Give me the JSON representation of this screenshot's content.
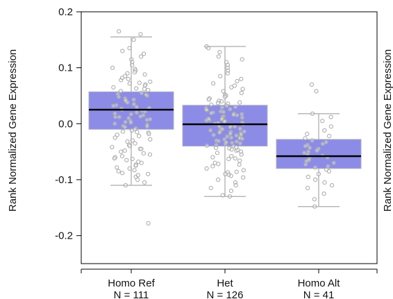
{
  "chart_data": {
    "type": "box",
    "ylabel": "Rank Normalized Gene Expression",
    "ylabel_right": "Rank Normalized Gene Expression",
    "ylim": [
      -0.25,
      0.2
    ],
    "yticks": [
      -0.2,
      -0.1,
      0.0,
      0.1,
      0.2
    ],
    "ytick_labels": [
      "-0.2",
      "-0.1",
      "0.0",
      "0.1",
      "0.2"
    ],
    "grid": false,
    "colors": {
      "box_fill": "#8c8ce6",
      "box_stroke": "#b0b0c8",
      "whisker": "#b8b8b8",
      "median": "#000000",
      "point_stroke": "#a8a8a8"
    },
    "categories": [
      {
        "label": "Homo Ref",
        "n_label": "N = 111",
        "q1": -0.01,
        "median": 0.025,
        "q3": 0.057,
        "whisker_low": -0.11,
        "whisker_high": 0.155,
        "points": [
          0.165,
          0.16,
          0.15,
          0.135,
          0.13,
          0.125,
          0.12,
          0.115,
          0.11,
          0.105,
          0.1,
          0.098,
          0.095,
          0.09,
          0.088,
          0.085,
          0.08,
          0.078,
          0.075,
          0.073,
          0.07,
          0.068,
          0.065,
          0.063,
          0.06,
          0.058,
          0.055,
          0.053,
          0.05,
          0.048,
          0.045,
          0.043,
          0.04,
          0.038,
          0.035,
          0.033,
          0.03,
          0.028,
          0.027,
          0.025,
          0.023,
          0.022,
          0.02,
          0.018,
          0.017,
          0.015,
          0.013,
          0.012,
          0.01,
          0.008,
          0.007,
          0.005,
          0.003,
          0.002,
          0.0,
          -0.002,
          -0.004,
          -0.006,
          -0.008,
          -0.01,
          -0.012,
          -0.014,
          -0.016,
          -0.018,
          -0.02,
          -0.022,
          -0.025,
          -0.028,
          -0.03,
          -0.032,
          -0.035,
          -0.038,
          -0.04,
          -0.042,
          -0.045,
          -0.048,
          -0.05,
          -0.053,
          -0.055,
          -0.058,
          -0.06,
          -0.063,
          -0.065,
          -0.068,
          -0.07,
          -0.073,
          -0.075,
          -0.078,
          -0.08,
          -0.083,
          -0.085,
          -0.088,
          -0.09,
          -0.095,
          -0.1,
          -0.105,
          -0.11,
          0.062,
          0.072,
          0.082,
          0.092,
          0.032,
          0.042,
          0.052,
          0.012,
          -0.005,
          -0.015,
          -0.045,
          -0.062,
          -0.092,
          -0.178
        ]
      },
      {
        "label": "Het",
        "n_label": "N = 126",
        "q1": -0.04,
        "median": -0.001,
        "q3": 0.033,
        "whisker_low": -0.13,
        "whisker_high": 0.138,
        "points": [
          0.138,
          0.135,
          0.128,
          0.12,
          0.115,
          0.11,
          0.105,
          0.1,
          0.095,
          0.09,
          0.085,
          0.08,
          0.076,
          0.072,
          0.068,
          0.065,
          0.062,
          0.058,
          0.055,
          0.052,
          0.05,
          0.048,
          0.045,
          0.043,
          0.04,
          0.038,
          0.036,
          0.034,
          0.032,
          0.03,
          0.028,
          0.026,
          0.024,
          0.022,
          0.02,
          0.018,
          0.016,
          0.015,
          0.013,
          0.012,
          0.01,
          0.008,
          0.007,
          0.005,
          0.004,
          0.002,
          0.0,
          -0.001,
          -0.003,
          -0.005,
          -0.006,
          -0.008,
          -0.01,
          -0.012,
          -0.013,
          -0.015,
          -0.017,
          -0.018,
          -0.02,
          -0.022,
          -0.024,
          -0.026,
          -0.028,
          -0.03,
          -0.032,
          -0.034,
          -0.036,
          -0.038,
          -0.04,
          -0.042,
          -0.044,
          -0.046,
          -0.048,
          -0.05,
          -0.052,
          -0.055,
          -0.058,
          -0.06,
          -0.063,
          -0.066,
          -0.07,
          -0.073,
          -0.076,
          -0.08,
          -0.083,
          -0.086,
          -0.09,
          -0.093,
          -0.096,
          -0.1,
          -0.105,
          -0.11,
          -0.115,
          -0.12,
          -0.128,
          -0.13,
          0.025,
          0.021,
          0.017,
          0.011,
          0.006,
          0.001,
          -0.004,
          -0.009,
          -0.014,
          -0.019,
          -0.023,
          -0.027,
          -0.031,
          -0.035,
          -0.039,
          -0.043,
          -0.047,
          0.041,
          0.037,
          0.029,
          0.019,
          0.009,
          -0.016,
          -0.021,
          -0.025,
          -0.033,
          -0.062,
          -0.072,
          -0.087,
          -0.091
        ]
      },
      {
        "label": "Homo Alt",
        "n_label": "N = 41",
        "q1": -0.08,
        "median": -0.058,
        "q3": -0.028,
        "whisker_low": -0.148,
        "whisker_high": 0.018,
        "points": [
          0.07,
          0.058,
          0.018,
          0.012,
          0.005,
          -0.005,
          -0.012,
          -0.018,
          -0.022,
          -0.026,
          -0.03,
          -0.033,
          -0.036,
          -0.038,
          -0.04,
          -0.043,
          -0.045,
          -0.048,
          -0.05,
          -0.052,
          -0.055,
          -0.057,
          -0.06,
          -0.062,
          -0.065,
          -0.067,
          -0.07,
          -0.073,
          -0.076,
          -0.078,
          -0.082,
          -0.085,
          -0.09,
          -0.095,
          -0.1,
          -0.105,
          -0.11,
          -0.115,
          -0.125,
          -0.135,
          -0.148
        ]
      }
    ]
  }
}
